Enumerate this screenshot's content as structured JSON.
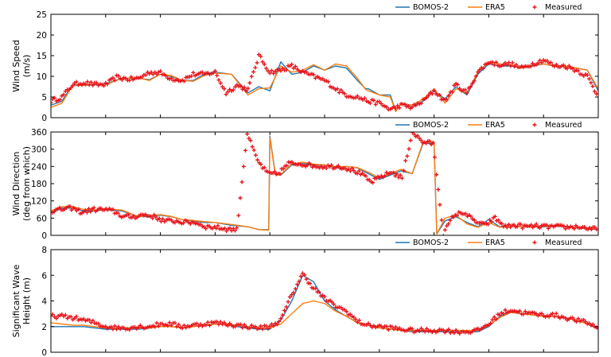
{
  "colors": {
    "bomos": "#1f77b4",
    "era5": "#ff7f0e",
    "measured": "#e8141b"
  },
  "chart_data": [
    {
      "type": "line",
      "ylabel_lines": [
        "Wind Speed",
        "(m/s)"
      ],
      "ylim": [
        0,
        25
      ],
      "yticks": [
        0,
        5,
        10,
        15,
        20,
        25
      ],
      "xlim": [
        0,
        100
      ],
      "legend": [
        "BOMOS-2",
        "ERA5",
        "Measured"
      ],
      "legend_position": "top-right",
      "series": [
        {
          "name": "BOMOS-2",
          "x": [
            0,
            2,
            4,
            6,
            8,
            10,
            13,
            16,
            18,
            20,
            22,
            24,
            26,
            28,
            30,
            33,
            36,
            38,
            40,
            42,
            44,
            46,
            48,
            50,
            52,
            54,
            56,
            57.5,
            58,
            60,
            62,
            63,
            64,
            66,
            68,
            70,
            72,
            74,
            76,
            78,
            80,
            82,
            84,
            86,
            88,
            90,
            92,
            94,
            96,
            98,
            100
          ],
          "y": [
            3,
            4,
            8,
            7.8,
            8,
            8.2,
            9.5,
            9.5,
            9.2,
            10.5,
            10,
            9,
            9,
            10.5,
            11,
            10.5,
            6,
            7.5,
            6.5,
            13.5,
            10.5,
            11,
            12.5,
            11.5,
            12.5,
            12,
            9,
            7,
            7,
            5.5,
            5.5,
            1.5,
            3.5,
            2.5,
            4,
            6.5,
            4.5,
            7.5,
            5.5,
            10.5,
            13,
            12.5,
            12.5,
            12,
            12.5,
            13,
            12.5,
            12.5,
            12,
            11.5,
            6.5
          ]
        },
        {
          "name": "ERA5",
          "x": [
            0,
            2,
            4,
            6,
            8,
            10,
            13,
            16,
            18,
            20,
            22,
            24,
            26,
            28,
            30,
            33,
            36,
            38,
            40,
            42,
            44,
            46,
            48,
            50,
            52,
            54,
            56,
            57.5,
            58,
            60,
            62,
            63,
            64,
            66,
            68,
            70,
            72,
            74,
            76,
            78,
            80,
            82,
            84,
            86,
            88,
            90,
            92,
            94,
            96,
            98,
            100
          ],
          "y": [
            2.5,
            3.5,
            7.8,
            7.8,
            8.2,
            8,
            9.5,
            9.6,
            9,
            10.5,
            10.2,
            9,
            8.8,
            10.2,
            10.8,
            10.5,
            5.5,
            7,
            7.2,
            12.5,
            11,
            11.5,
            12.8,
            11.5,
            13,
            12.5,
            9.5,
            6.8,
            6.5,
            5.5,
            5,
            1.5,
            3.5,
            3,
            4.5,
            7,
            3.5,
            7,
            6,
            11,
            13.5,
            13,
            12.8,
            12,
            12.8,
            13,
            12.5,
            12.5,
            12,
            11.5,
            7
          ]
        },
        {
          "name": "Measured",
          "points": "random",
          "y": [
            4,
            5,
            8,
            8.5,
            8,
            8,
            9.8,
            9.3,
            9.5,
            11,
            10.8,
            9.5,
            9,
            10.5,
            10.5,
            11,
            6,
            7.8,
            6.8,
            15,
            11,
            11.5,
            12.5,
            11,
            10,
            9,
            7,
            5.5,
            5,
            4,
            3.5,
            2,
            3,
            2.5,
            4,
            6.5,
            4,
            8,
            6,
            11,
            13.5,
            12.8,
            13,
            12,
            13,
            14,
            12.5,
            12.5,
            11.5,
            10,
            5
          ]
        }
      ]
    },
    {
      "type": "line",
      "ylabel_lines": [
        "Wind Direction",
        "(deg from which)"
      ],
      "ylim": [
        0,
        360
      ],
      "yticks": [
        0,
        60,
        120,
        180,
        240,
        300,
        360
      ],
      "xlim": [
        0,
        100
      ],
      "legend": [
        "BOMOS-2",
        "ERA5",
        "Measured"
      ],
      "legend_position": "top-right",
      "series": [
        {
          "name": "BOMOS-2",
          "x": [
            0,
            2,
            4,
            6,
            8,
            10,
            13,
            16,
            18,
            20,
            22,
            24,
            26,
            28,
            30,
            33,
            36,
            38,
            39.8,
            40,
            40.5,
            41,
            42,
            44,
            46,
            48,
            50,
            52,
            54,
            56,
            58,
            60,
            62,
            64,
            66,
            68,
            69.5,
            70,
            70.5,
            72,
            74,
            76,
            78,
            80,
            82,
            84,
            86,
            88,
            90,
            92,
            94,
            96,
            98,
            100
          ],
          "y": [
            80,
            95,
            95,
            85,
            85,
            90,
            85,
            65,
            65,
            70,
            65,
            55,
            50,
            45,
            45,
            35,
            30,
            20,
            20,
            345,
            280,
            215,
            210,
            245,
            250,
            245,
            245,
            235,
            240,
            235,
            215,
            195,
            210,
            225,
            215,
            320,
            320,
            320,
            5,
            50,
            65,
            45,
            30,
            55,
            30,
            35,
            30,
            30,
            30,
            32,
            30,
            28,
            22,
            20
          ]
        },
        {
          "name": "ERA5",
          "x": [
            0,
            2,
            4,
            6,
            8,
            10,
            13,
            16,
            18,
            20,
            22,
            24,
            26,
            28,
            30,
            33,
            36,
            38,
            39.8,
            40,
            40.5,
            41,
            42,
            44,
            46,
            48,
            50,
            52,
            54,
            56,
            58,
            60,
            62,
            64,
            66,
            68,
            69.5,
            70,
            70.5,
            72,
            74,
            76,
            78,
            80,
            82,
            84,
            86,
            88,
            90,
            92,
            94,
            96,
            98,
            100
          ],
          "y": [
            85,
            100,
            100,
            90,
            88,
            92,
            88,
            65,
            68,
            72,
            66,
            55,
            52,
            48,
            45,
            38,
            30,
            20,
            18,
            340,
            275,
            210,
            212,
            248,
            255,
            248,
            245,
            238,
            240,
            236,
            220,
            200,
            215,
            230,
            215,
            325,
            325,
            325,
            5,
            60,
            70,
            40,
            28,
            45,
            28,
            35,
            30,
            30,
            32,
            35,
            30,
            28,
            25,
            20
          ]
        },
        {
          "name": "Measured",
          "points": "random",
          "y": [
            85,
            90,
            95,
            80,
            90,
            90,
            85,
            65,
            65,
            72,
            65,
            50,
            50,
            45,
            45,
            30,
            28,
            22,
            20,
            355,
            260,
            215,
            215,
            250,
            250,
            245,
            240,
            240,
            240,
            230,
            215,
            185,
            205,
            220,
            200,
            360,
            325,
            320,
            5,
            70,
            80,
            50,
            35,
            60,
            30,
            35,
            30,
            32,
            30,
            30,
            28,
            30,
            25,
            20
          ]
        }
      ]
    },
    {
      "type": "line",
      "ylabel_lines": [
        "Significant Wave",
        "Height (m)"
      ],
      "ylim": [
        0,
        8
      ],
      "yticks": [
        0,
        2,
        4,
        6,
        8
      ],
      "xlim": [
        0,
        100
      ],
      "legend": [
        "BOMOS-2",
        "ERA5",
        "Measured"
      ],
      "legend_position": "top-right",
      "series": [
        {
          "name": "BOMOS-2",
          "x": [
            0,
            2,
            4,
            6,
            8,
            10,
            12,
            14,
            16,
            18,
            20,
            22,
            24,
            26,
            28,
            30,
            32,
            34,
            36,
            38,
            40,
            42,
            44,
            46,
            48,
            50,
            52,
            54,
            56,
            58,
            60,
            62,
            64,
            66,
            68,
            70,
            72,
            74,
            76,
            78,
            80,
            82,
            84,
            86,
            88,
            90,
            92,
            94,
            96,
            98,
            100
          ],
          "y": [
            2,
            2,
            2,
            2,
            1.9,
            1.8,
            1.8,
            1.8,
            1.8,
            1.9,
            2,
            2,
            1.9,
            2,
            2.1,
            2.2,
            2.2,
            2,
            1.9,
            1.8,
            1.8,
            2.5,
            4,
            6,
            5.5,
            4,
            3.3,
            2.8,
            2.3,
            2.1,
            1.9,
            1.8,
            1.7,
            1.6,
            1.6,
            1.6,
            1.6,
            1.6,
            1.6,
            1.6,
            2,
            2.8,
            3.2,
            3,
            2.9,
            2.8,
            2.8,
            2.7,
            2.5,
            2.2,
            1.8
          ]
        },
        {
          "name": "ERA5",
          "x": [
            0,
            2,
            4,
            6,
            8,
            10,
            12,
            14,
            16,
            18,
            20,
            22,
            24,
            26,
            28,
            30,
            32,
            34,
            36,
            38,
            40,
            42,
            44,
            46,
            48,
            50,
            52,
            54,
            56,
            58,
            60,
            62,
            64,
            66,
            68,
            70,
            72,
            74,
            76,
            78,
            80,
            82,
            84,
            86,
            88,
            90,
            92,
            94,
            96,
            98,
            100
          ],
          "y": [
            2.3,
            2.2,
            2.1,
            2.1,
            2,
            1.9,
            1.9,
            1.9,
            1.9,
            1.9,
            2,
            2,
            1.9,
            2,
            2.1,
            2.2,
            2.2,
            2.1,
            2,
            1.9,
            1.9,
            2.2,
            3,
            3.8,
            4,
            3.8,
            3.2,
            2.8,
            2.3,
            2.1,
            1.9,
            1.8,
            1.7,
            1.7,
            1.7,
            1.7,
            1.7,
            1.7,
            1.7,
            1.7,
            2.1,
            2.7,
            3.1,
            3,
            2.9,
            2.8,
            2.8,
            2.7,
            2.5,
            2.2,
            1.9
          ]
        },
        {
          "name": "Measured",
          "points": "random",
          "y": [
            2.8,
            2.8,
            2.7,
            2.5,
            2.3,
            2,
            1.9,
            1.9,
            2,
            2,
            2.2,
            2.2,
            2,
            2.1,
            2.2,
            2.3,
            2.2,
            2.1,
            2,
            1.9,
            2,
            2.5,
            4.5,
            6.1,
            5,
            4.2,
            3.6,
            3.2,
            2.4,
            2.1,
            2,
            1.9,
            1.8,
            1.7,
            1.7,
            1.7,
            1.7,
            1.6,
            1.6,
            1.7,
            2.2,
            3,
            3.3,
            3.1,
            3,
            2.9,
            2.9,
            2.7,
            2.5,
            2.3,
            1.9
          ]
        }
      ]
    }
  ]
}
